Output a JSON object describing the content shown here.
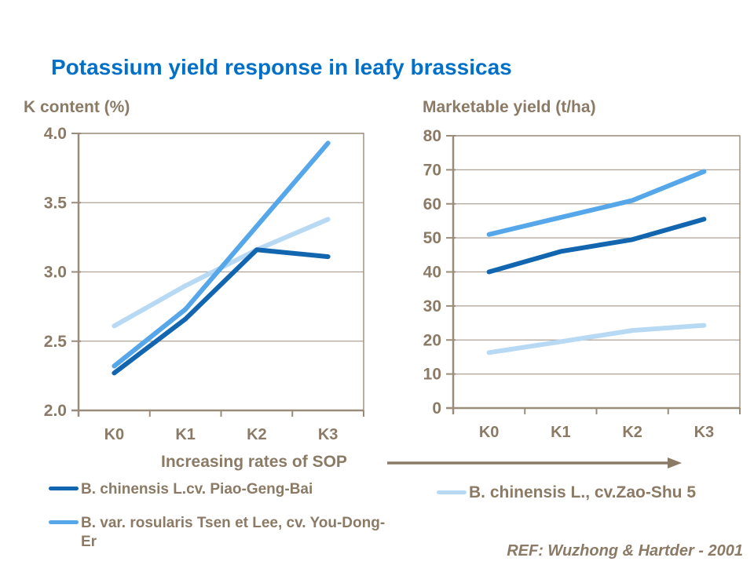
{
  "title": "Potassium yield response in leafy brassicas",
  "sop_label": "Increasing rates of SOP",
  "reference": "REF: Wuzhong & Hartder - 2001",
  "colors": {
    "title": "#0070C8",
    "text": "#8B7A65",
    "axis": "#9A8C7A",
    "grid": "#AFA294",
    "series_dark": "#1266B0",
    "series_medium": "#55A7EA",
    "series_light": "#B8D9F4"
  },
  "legend": {
    "left": [
      {
        "label": "B. chinensis L.cv. Piao-Geng-Bai",
        "color_key": "series_dark"
      },
      {
        "label": "B. var. rosularis Tsen et Lee, cv. You-Dong-Er",
        "color_key": "series_medium"
      }
    ],
    "right": [
      {
        "label": "B. chinensis L., cv.Zao-Shu 5",
        "color_key": "series_light"
      }
    ]
  },
  "chart_data": [
    {
      "type": "line",
      "axis_title": "K content (%)",
      "categories": [
        "K0",
        "K1",
        "K2",
        "K3"
      ],
      "ylim": [
        2.0,
        4.0
      ],
      "ytick_step": 0.5,
      "ytick_decimals": 1,
      "grid": true,
      "legend_position": "below",
      "series": [
        {
          "name": "B. chinensis L.cv. Piao-Geng-Bai",
          "color_key": "series_dark",
          "values": [
            2.27,
            2.66,
            3.16,
            3.11
          ]
        },
        {
          "name": "B. var. rosularis Tsen et Lee, cv. You-Dong-Er",
          "color_key": "series_medium",
          "values": [
            2.32,
            2.73,
            3.33,
            3.93
          ]
        },
        {
          "name": "B. chinensis L., cv.Zao-Shu 5",
          "color_key": "series_light",
          "values": [
            2.61,
            2.9,
            3.16,
            3.38
          ]
        }
      ],
      "draw_order": [
        2,
        0,
        1
      ]
    },
    {
      "type": "line",
      "axis_title": "Marketable yield (t/ha)",
      "categories": [
        "K0",
        "K1",
        "K2",
        "K3"
      ],
      "ylim": [
        0,
        80
      ],
      "ytick_step": 10,
      "ytick_decimals": 0,
      "grid": true,
      "legend_position": "below",
      "series": [
        {
          "name": "B. chinensis L.cv. Piao-Geng-Bai",
          "color_key": "series_dark",
          "values": [
            40,
            46,
            49.5,
            55.5
          ]
        },
        {
          "name": "B. var. rosularis Tsen et Lee, cv. You-Dong-Er",
          "color_key": "series_medium",
          "values": [
            51,
            56,
            61,
            69.5
          ]
        },
        {
          "name": "B. chinensis L., cv.Zao-Shu 5",
          "color_key": "series_light",
          "values": [
            16.3,
            19.5,
            22.8,
            24.3
          ]
        }
      ],
      "draw_order": [
        2,
        0,
        1
      ]
    }
  ]
}
